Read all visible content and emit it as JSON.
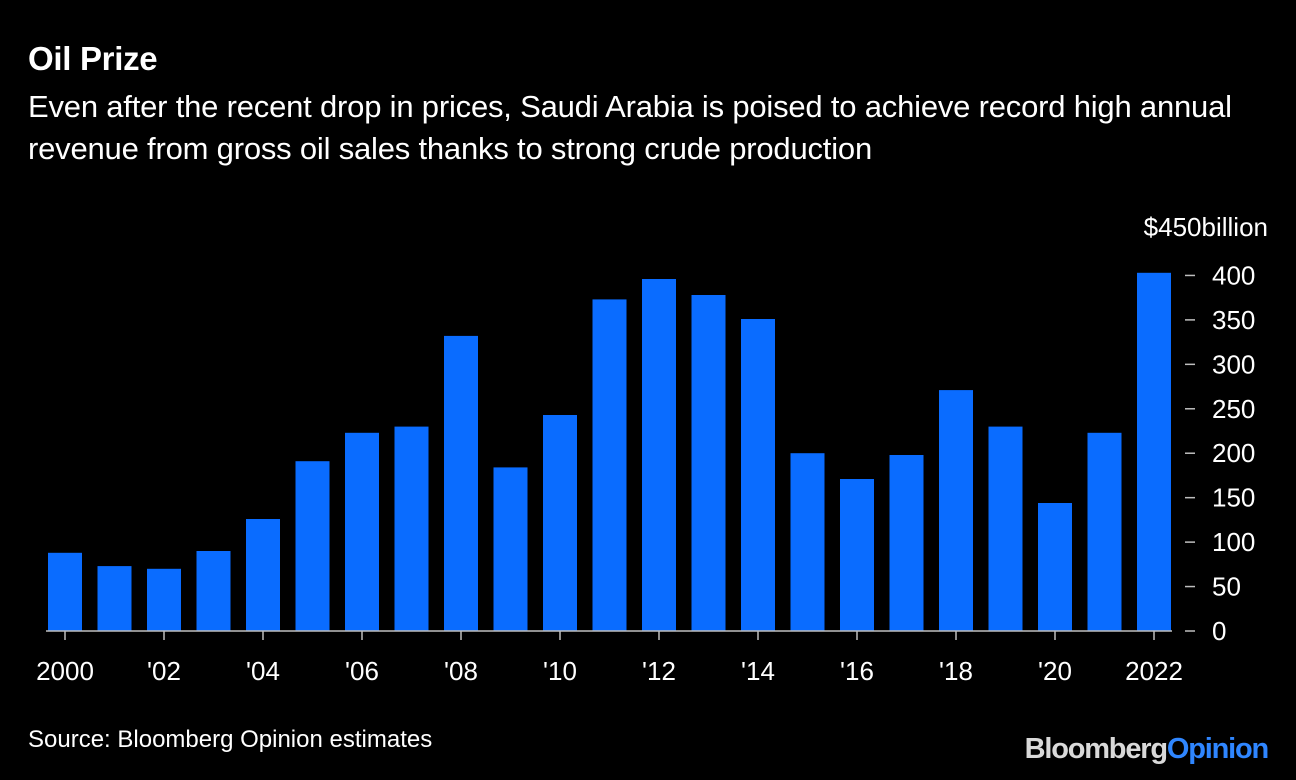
{
  "header": {
    "title": "Oil Prize",
    "subtitle": "Even after the recent drop in prices, Saudi Arabia is poised to achieve record high annual revenue from gross oil sales thanks to strong crude production"
  },
  "footer": {
    "source": "Source: Bloomberg Opinion estimates",
    "brand_part1": "Bloomberg",
    "brand_part2": "Opinion"
  },
  "colors": {
    "background": "#000000",
    "bar": "#0a6cff",
    "text": "#ffffff",
    "axis": "#bfbfbf",
    "brand_accent": "#2f86ff"
  },
  "chart_data": {
    "type": "bar",
    "categories": [
      "2000",
      "2001",
      "2002",
      "2003",
      "2004",
      "2005",
      "2006",
      "2007",
      "2008",
      "2009",
      "2010",
      "2011",
      "2012",
      "2013",
      "2014",
      "2015",
      "2016",
      "2017",
      "2018",
      "2019",
      "2020",
      "2021",
      "2022"
    ],
    "values": [
      88,
      73,
      70,
      90,
      126,
      191,
      223,
      230,
      332,
      184,
      243,
      373,
      396,
      378,
      351,
      200,
      171,
      198,
      271,
      230,
      144,
      223,
      403
    ],
    "x_tick_labels": [
      {
        "category": "2000",
        "label": "2000"
      },
      {
        "category": "2002",
        "label": "'02"
      },
      {
        "category": "2004",
        "label": "'04"
      },
      {
        "category": "2006",
        "label": "'06"
      },
      {
        "category": "2008",
        "label": "'08"
      },
      {
        "category": "2010",
        "label": "'10"
      },
      {
        "category": "2012",
        "label": "'12"
      },
      {
        "category": "2014",
        "label": "'14"
      },
      {
        "category": "2016",
        "label": "'16"
      },
      {
        "category": "2018",
        "label": "'18"
      },
      {
        "category": "2020",
        "label": "'20"
      },
      {
        "category": "2022",
        "label": "2022"
      }
    ],
    "y_ticks": [
      0,
      50,
      100,
      150,
      200,
      250,
      300,
      350,
      400
    ],
    "ylim": [
      0,
      450
    ],
    "y_unit_label": "$450billion",
    "y_axis_side": "right",
    "grid": false,
    "xlabel": "",
    "ylabel": ""
  }
}
